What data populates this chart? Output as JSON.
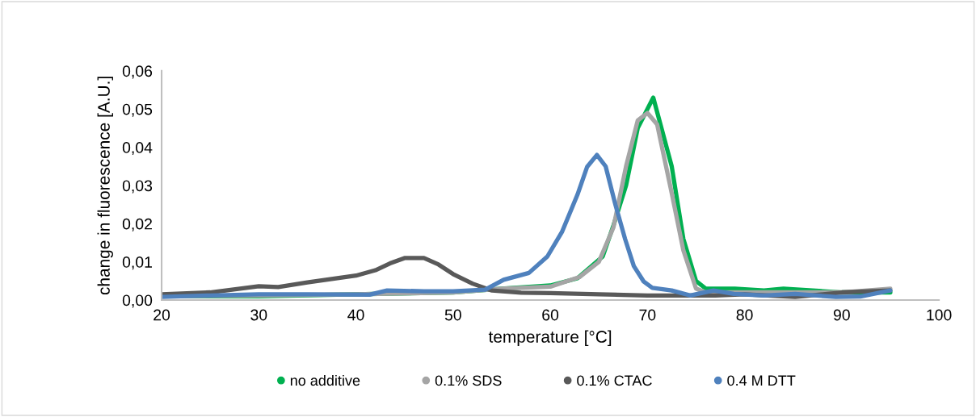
{
  "chart_data": {
    "type": "line",
    "xlabel": "temperature [°C]",
    "ylabel": "change in fluorescence [A.U.]",
    "xlim": [
      20,
      100
    ],
    "xticks": [
      20,
      30,
      40,
      50,
      60,
      70,
      80,
      90,
      100
    ],
    "ylim": [
      0,
      0.06
    ],
    "yticks": [
      {
        "value": 0,
        "label": "0,00"
      },
      {
        "value": 0.01,
        "label": "0,01"
      },
      {
        "value": 0.02,
        "label": "0,02"
      },
      {
        "value": 0.03,
        "label": "0,03"
      },
      {
        "value": 0.04,
        "label": "0,04"
      },
      {
        "value": 0.05,
        "label": "0,05"
      },
      {
        "value": 0.06,
        "label": "0,06"
      }
    ],
    "grid": false,
    "legend": "bottom",
    "marker": "none",
    "line_style": "solid",
    "series": [
      {
        "name": "no additive",
        "color": "#00b050",
        "x": [
          20,
          30,
          40,
          50,
          55,
          60,
          62.8,
          65.4,
          66.5,
          67.8,
          69,
          70.6,
          72.5,
          73.7,
          75,
          76,
          79,
          82,
          84,
          87,
          90,
          95
        ],
        "values": [
          0.001,
          0.001,
          0.0015,
          0.002,
          0.003,
          0.0038,
          0.0057,
          0.0114,
          0.0195,
          0.03,
          0.045,
          0.053,
          0.035,
          0.016,
          0.005,
          0.003,
          0.003,
          0.0025,
          0.003,
          0.0025,
          0.002,
          0.002
        ]
      },
      {
        "name": "0.1% SDS",
        "color": "#a5a5a5",
        "x": [
          20,
          30,
          40,
          50,
          55,
          60,
          63,
          65,
          66.5,
          67.8,
          69,
          70,
          71,
          72.5,
          73.7,
          75,
          76,
          80,
          85,
          88,
          90,
          95
        ],
        "values": [
          0.001,
          0.0012,
          0.0015,
          0.002,
          0.003,
          0.0035,
          0.006,
          0.01,
          0.019,
          0.035,
          0.047,
          0.049,
          0.046,
          0.028,
          0.013,
          0.003,
          0.002,
          0.002,
          0.002,
          0.002,
          0.002,
          0.003
        ]
      },
      {
        "name": "0.1% CTAC",
        "color": "#595959",
        "x": [
          20,
          25,
          30,
          32,
          35,
          40,
          42,
          43.5,
          45,
          47,
          48.5,
          50,
          52,
          54,
          57,
          60,
          65,
          70,
          75,
          77,
          80,
          85.2,
          90,
          95
        ],
        "values": [
          0.0015,
          0.002,
          0.0036,
          0.0034,
          0.0046,
          0.0064,
          0.0078,
          0.0096,
          0.011,
          0.011,
          0.0093,
          0.0068,
          0.0043,
          0.0025,
          0.0019,
          0.0018,
          0.0015,
          0.0012,
          0.0012,
          0.0012,
          0.0015,
          0.0008,
          0.002,
          0.0025
        ]
      },
      {
        "name": "0.4 M DTT",
        "color": "#4f81bd",
        "x": [
          20,
          25,
          30,
          35,
          41.4,
          43.2,
          47,
          50,
          53.3,
          55.2,
          57.8,
          59.7,
          61.2,
          62.8,
          63.8,
          64.8,
          65.7,
          66.7,
          67.7,
          68.6,
          69.6,
          70.5,
          72.5,
          74.4,
          76.8,
          78.9,
          82,
          85.2,
          89.4,
          91.9,
          95
        ],
        "values": [
          0.0008,
          0.0012,
          0.0015,
          0.0015,
          0.0014,
          0.0025,
          0.0023,
          0.0023,
          0.0027,
          0.0053,
          0.0071,
          0.0114,
          0.0178,
          0.0276,
          0.0349,
          0.038,
          0.035,
          0.025,
          0.016,
          0.0089,
          0.0049,
          0.0032,
          0.0025,
          0.0012,
          0.0025,
          0.0016,
          0.0012,
          0.0016,
          0.0008,
          0.0009,
          0.0025
        ]
      }
    ]
  }
}
